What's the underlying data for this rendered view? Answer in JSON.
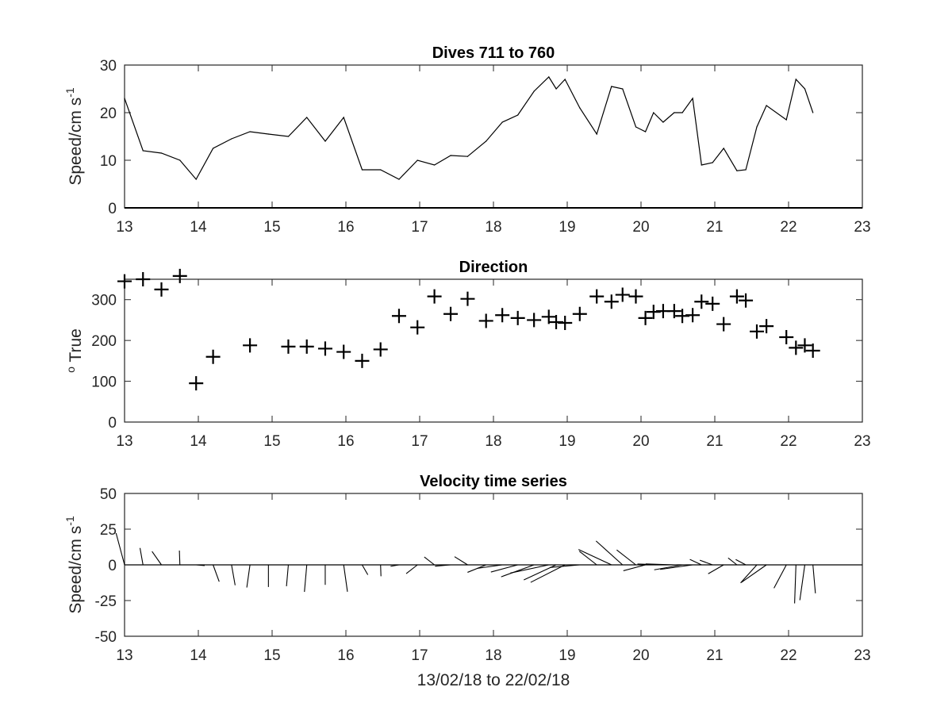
{
  "chart_data": [
    {
      "type": "line",
      "title": "Dives 711 to 760",
      "ylabel_main": "Speed/cm s",
      "ylabel_sup": "-1",
      "xlabel": "",
      "xlim": [
        13,
        23
      ],
      "ylim": [
        0,
        30
      ],
      "xticks": [
        "13",
        "14",
        "15",
        "16",
        "17",
        "18",
        "19",
        "20",
        "21",
        "22",
        "23"
      ],
      "yticks": [
        "0",
        "10",
        "20",
        "30"
      ],
      "x": [
        13.0,
        13.25,
        13.5,
        13.75,
        13.97,
        14.2,
        14.45,
        14.7,
        14.95,
        15.22,
        15.47,
        15.72,
        15.97,
        16.22,
        16.47,
        16.72,
        16.97,
        17.2,
        17.42,
        17.65,
        17.9,
        18.12,
        18.33,
        18.55,
        18.75,
        18.85,
        18.97,
        19.17,
        19.4,
        19.6,
        19.75,
        19.93,
        20.06,
        20.17,
        20.3,
        20.45,
        20.56,
        20.7,
        20.82,
        20.97,
        21.12,
        21.3,
        21.42,
        21.57,
        21.7,
        21.97,
        22.1,
        22.22,
        22.33
      ],
      "y": [
        23,
        12,
        11.5,
        10,
        6,
        12.5,
        14.5,
        16,
        15.5,
        15,
        19,
        14,
        19,
        8,
        8,
        6,
        10,
        9,
        11,
        10.8,
        14,
        18,
        19.5,
        24.5,
        27.5,
        25,
        27,
        21,
        15.5,
        25.5,
        25,
        17,
        16,
        20,
        18,
        20,
        20,
        23,
        9,
        9.5,
        12.5,
        7.8,
        8,
        17,
        21.5,
        18.5,
        27,
        25,
        20
      ]
    },
    {
      "type": "scatter",
      "title": "Direction",
      "ylabel_main": "True",
      "ylabel_sup": "o",
      "xlabel": "",
      "xlim": [
        13,
        23
      ],
      "ylim": [
        0,
        350
      ],
      "xticks": [
        "13",
        "14",
        "15",
        "16",
        "17",
        "18",
        "19",
        "20",
        "21",
        "22",
        "23"
      ],
      "yticks": [
        "0",
        "100",
        "200",
        "300"
      ],
      "x": [
        13.0,
        13.25,
        13.5,
        13.75,
        13.97,
        14.2,
        14.7,
        15.22,
        15.47,
        15.72,
        15.97,
        16.22,
        16.47,
        16.72,
        16.97,
        17.2,
        17.42,
        17.65,
        17.9,
        18.12,
        18.33,
        18.55,
        18.75,
        18.85,
        18.97,
        19.17,
        19.4,
        19.6,
        19.75,
        19.93,
        20.06,
        20.17,
        20.3,
        20.45,
        20.56,
        20.7,
        20.82,
        20.97,
        21.12,
        21.3,
        21.42,
        21.57,
        21.7,
        21.97,
        22.1,
        22.22,
        22.33
      ],
      "y": [
        345,
        350,
        325,
        358,
        95,
        160,
        188,
        185,
        185,
        180,
        172,
        150,
        178,
        260,
        232,
        308,
        265,
        302,
        248,
        262,
        255,
        250,
        258,
        245,
        243,
        265,
        308,
        295,
        312,
        308,
        255,
        270,
        272,
        272,
        260,
        262,
        295,
        290,
        240,
        308,
        298,
        222,
        235,
        208,
        182,
        188,
        175
      ]
    },
    {
      "type": "quiver",
      "title": "Velocity time series",
      "ylabel_main": "Speed/cm s",
      "ylabel_sup": "-1",
      "xlabel": "13/02/18 to 22/02/18",
      "xlim": [
        13,
        23
      ],
      "ylim": [
        -50,
        50
      ],
      "xticks": [
        "13",
        "14",
        "15",
        "16",
        "17",
        "18",
        "19",
        "20",
        "21",
        "22",
        "23"
      ],
      "yticks": [
        "-50",
        "-25",
        "0",
        "25",
        "50"
      ],
      "x": [
        13.0,
        13.25,
        13.5,
        13.75,
        13.97,
        14.2,
        14.45,
        14.7,
        14.95,
        15.22,
        15.47,
        15.72,
        15.97,
        16.22,
        16.47,
        16.72,
        16.97,
        17.2,
        17.42,
        17.65,
        17.9,
        18.12,
        18.33,
        18.55,
        18.75,
        18.85,
        18.97,
        19.17,
        19.4,
        19.6,
        19.75,
        19.93,
        20.06,
        20.17,
        20.3,
        20.45,
        20.56,
        20.7,
        20.82,
        20.97,
        21.12,
        21.3,
        21.42,
        21.57,
        21.7,
        21.97,
        22.1,
        22.22,
        22.33
      ],
      "speed": [
        23,
        12,
        11.5,
        10,
        6,
        12.5,
        14.5,
        16,
        15.5,
        15,
        19,
        14,
        19,
        8,
        8,
        6,
        10,
        9,
        11,
        10.8,
        14,
        18,
        19.5,
        24.5,
        27.5,
        25,
        27,
        21,
        15.5,
        25.5,
        25,
        17,
        16,
        20,
        18,
        20,
        20,
        23,
        9,
        9.5,
        12.5,
        7.8,
        8,
        17,
        21.5,
        18.5,
        27,
        25,
        20
      ],
      "direction": [
        345,
        350,
        325,
        358,
        95,
        160,
        170,
        188,
        180,
        185,
        185,
        180,
        172,
        150,
        178,
        260,
        232,
        308,
        265,
        302,
        248,
        262,
        255,
        250,
        258,
        245,
        243,
        265,
        308,
        295,
        312,
        308,
        255,
        270,
        272,
        272,
        260,
        262,
        295,
        290,
        240,
        308,
        298,
        222,
        235,
        208,
        182,
        188,
        175
      ]
    }
  ]
}
